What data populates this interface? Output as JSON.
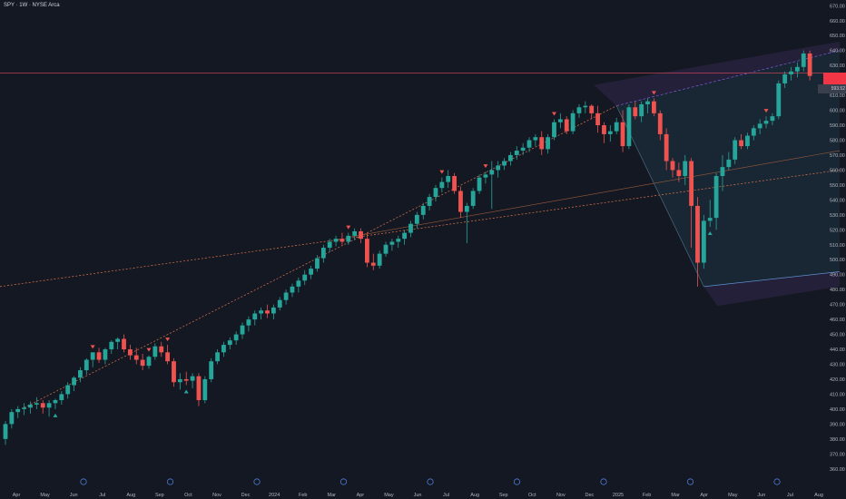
{
  "header": {
    "title": "SPY · 1W · NYSE Arca"
  },
  "price_label": "593.52",
  "colors": {
    "bg": "#141823",
    "up": "#26a69a",
    "down": "#ef5350",
    "axis_text": "#b2b5be",
    "trend": "#e0764a",
    "channel_fill": "#1e3a4a",
    "channel_top": "#7b5cd6",
    "hline": "#e04b5f"
  },
  "chart_data": {
    "type": "candlestick",
    "title": "SPY · 1W · NYSE Arca",
    "ylim": [
      355,
      672
    ],
    "y_ticks": [
      360,
      370,
      380,
      390,
      400,
      410,
      420,
      430,
      440,
      450,
      460,
      470,
      480,
      490,
      500,
      510,
      520,
      530,
      540,
      550,
      560,
      570,
      580,
      590,
      600,
      610,
      620,
      630,
      640,
      650,
      660,
      670
    ],
    "x_ticks": [
      "Apr",
      "May",
      "Jun",
      "Jul",
      "Aug",
      "Sep",
      "Oct",
      "Nov",
      "Dec",
      "2024",
      "Feb",
      "Mar",
      "Apr",
      "May",
      "Jun",
      "Jul",
      "Aug",
      "Sep",
      "Oct",
      "Nov",
      "Dec",
      "2025",
      "Feb",
      "Mar",
      "Apr",
      "May",
      "Jun",
      "Jul",
      "Aug"
    ],
    "grid": false,
    "candles": [
      {
        "o": 380,
        "h": 392,
        "l": 376,
        "c": 390
      },
      {
        "o": 390,
        "h": 400,
        "l": 387,
        "c": 398
      },
      {
        "o": 398,
        "h": 402,
        "l": 394,
        "c": 400
      },
      {
        "o": 400,
        "h": 404,
        "l": 396,
        "c": 401
      },
      {
        "o": 401,
        "h": 405,
        "l": 397,
        "c": 403
      },
      {
        "o": 403,
        "h": 408,
        "l": 400,
        "c": 404
      },
      {
        "o": 404,
        "h": 406,
        "l": 397,
        "c": 401
      },
      {
        "o": 401,
        "h": 406,
        "l": 395,
        "c": 404
      },
      {
        "o": 404,
        "h": 407,
        "l": 400,
        "c": 406
      },
      {
        "o": 406,
        "h": 412,
        "l": 403,
        "c": 410
      },
      {
        "o": 410,
        "h": 418,
        "l": 407,
        "c": 416
      },
      {
        "o": 416,
        "h": 422,
        "l": 412,
        "c": 421
      },
      {
        "o": 421,
        "h": 428,
        "l": 418,
        "c": 426
      },
      {
        "o": 426,
        "h": 434,
        "l": 423,
        "c": 433
      },
      {
        "o": 433,
        "h": 438,
        "l": 428,
        "c": 438
      },
      {
        "o": 438,
        "h": 441,
        "l": 431,
        "c": 433
      },
      {
        "o": 433,
        "h": 441,
        "l": 430,
        "c": 440
      },
      {
        "o": 440,
        "h": 446,
        "l": 437,
        "c": 445
      },
      {
        "o": 445,
        "h": 448,
        "l": 440,
        "c": 447
      },
      {
        "o": 447,
        "h": 450,
        "l": 438,
        "c": 440
      },
      {
        "o": 440,
        "h": 443,
        "l": 433,
        "c": 436
      },
      {
        "o": 436,
        "h": 441,
        "l": 430,
        "c": 433
      },
      {
        "o": 433,
        "h": 437,
        "l": 426,
        "c": 429
      },
      {
        "o": 429,
        "h": 436,
        "l": 427,
        "c": 435
      },
      {
        "o": 435,
        "h": 444,
        "l": 433,
        "c": 442
      },
      {
        "o": 442,
        "h": 445,
        "l": 435,
        "c": 438
      },
      {
        "o": 438,
        "h": 443,
        "l": 430,
        "c": 432
      },
      {
        "o": 432,
        "h": 434,
        "l": 415,
        "c": 418
      },
      {
        "o": 418,
        "h": 424,
        "l": 413,
        "c": 420
      },
      {
        "o": 420,
        "h": 425,
        "l": 416,
        "c": 419
      },
      {
        "o": 419,
        "h": 424,
        "l": 414,
        "c": 422
      },
      {
        "o": 422,
        "h": 424,
        "l": 402,
        "c": 406
      },
      {
        "o": 406,
        "h": 422,
        "l": 404,
        "c": 420
      },
      {
        "o": 420,
        "h": 434,
        "l": 418,
        "c": 432
      },
      {
        "o": 432,
        "h": 440,
        "l": 430,
        "c": 438
      },
      {
        "o": 438,
        "h": 445,
        "l": 435,
        "c": 443
      },
      {
        "o": 443,
        "h": 448,
        "l": 440,
        "c": 446
      },
      {
        "o": 446,
        "h": 452,
        "l": 443,
        "c": 450
      },
      {
        "o": 450,
        "h": 458,
        "l": 447,
        "c": 456
      },
      {
        "o": 456,
        "h": 462,
        "l": 452,
        "c": 460
      },
      {
        "o": 460,
        "h": 466,
        "l": 456,
        "c": 464
      },
      {
        "o": 464,
        "h": 468,
        "l": 460,
        "c": 466
      },
      {
        "o": 466,
        "h": 470,
        "l": 461,
        "c": 464
      },
      {
        "o": 464,
        "h": 470,
        "l": 460,
        "c": 468
      },
      {
        "o": 468,
        "h": 475,
        "l": 466,
        "c": 473
      },
      {
        "o": 473,
        "h": 480,
        "l": 470,
        "c": 478
      },
      {
        "o": 478,
        "h": 484,
        "l": 475,
        "c": 482
      },
      {
        "o": 482,
        "h": 488,
        "l": 478,
        "c": 486
      },
      {
        "o": 486,
        "h": 493,
        "l": 483,
        "c": 490
      },
      {
        "o": 490,
        "h": 496,
        "l": 487,
        "c": 494
      },
      {
        "o": 494,
        "h": 503,
        "l": 492,
        "c": 501
      },
      {
        "o": 501,
        "h": 510,
        "l": 498,
        "c": 508
      },
      {
        "o": 508,
        "h": 514,
        "l": 505,
        "c": 512
      },
      {
        "o": 512,
        "h": 516,
        "l": 509,
        "c": 514
      },
      {
        "o": 514,
        "h": 518,
        "l": 510,
        "c": 512
      },
      {
        "o": 512,
        "h": 518,
        "l": 510,
        "c": 516
      },
      {
        "o": 516,
        "h": 521,
        "l": 513,
        "c": 519
      },
      {
        "o": 519,
        "h": 521,
        "l": 511,
        "c": 514
      },
      {
        "o": 514,
        "h": 518,
        "l": 495,
        "c": 498
      },
      {
        "o": 498,
        "h": 504,
        "l": 493,
        "c": 496
      },
      {
        "o": 496,
        "h": 506,
        "l": 494,
        "c": 504
      },
      {
        "o": 504,
        "h": 512,
        "l": 502,
        "c": 510
      },
      {
        "o": 510,
        "h": 514,
        "l": 506,
        "c": 512
      },
      {
        "o": 512,
        "h": 516,
        "l": 508,
        "c": 514
      },
      {
        "o": 514,
        "h": 520,
        "l": 510,
        "c": 518
      },
      {
        "o": 518,
        "h": 526,
        "l": 515,
        "c": 524
      },
      {
        "o": 524,
        "h": 532,
        "l": 521,
        "c": 530
      },
      {
        "o": 530,
        "h": 538,
        "l": 527,
        "c": 536
      },
      {
        "o": 536,
        "h": 544,
        "l": 533,
        "c": 542
      },
      {
        "o": 542,
        "h": 550,
        "l": 539,
        "c": 548
      },
      {
        "o": 548,
        "h": 555,
        "l": 545,
        "c": 552
      },
      {
        "o": 552,
        "h": 560,
        "l": 548,
        "c": 556
      },
      {
        "o": 556,
        "h": 558,
        "l": 544,
        "c": 546
      },
      {
        "o": 546,
        "h": 549,
        "l": 528,
        "c": 532
      },
      {
        "o": 532,
        "h": 538,
        "l": 511,
        "c": 536
      },
      {
        "o": 536,
        "h": 548,
        "l": 534,
        "c": 546
      },
      {
        "o": 546,
        "h": 557,
        "l": 544,
        "c": 555
      },
      {
        "o": 555,
        "h": 559,
        "l": 551,
        "c": 557
      },
      {
        "o": 557,
        "h": 566,
        "l": 534,
        "c": 560
      },
      {
        "o": 560,
        "h": 566,
        "l": 555,
        "c": 563
      },
      {
        "o": 563,
        "h": 568,
        "l": 560,
        "c": 566
      },
      {
        "o": 566,
        "h": 572,
        "l": 563,
        "c": 570
      },
      {
        "o": 570,
        "h": 576,
        "l": 567,
        "c": 573
      },
      {
        "o": 573,
        "h": 578,
        "l": 570,
        "c": 575
      },
      {
        "o": 575,
        "h": 582,
        "l": 572,
        "c": 580
      },
      {
        "o": 580,
        "h": 584,
        "l": 576,
        "c": 582
      },
      {
        "o": 582,
        "h": 586,
        "l": 570,
        "c": 574
      },
      {
        "o": 574,
        "h": 584,
        "l": 571,
        "c": 582
      },
      {
        "o": 582,
        "h": 594,
        "l": 580,
        "c": 592
      },
      {
        "o": 592,
        "h": 598,
        "l": 588,
        "c": 594
      },
      {
        "o": 594,
        "h": 596,
        "l": 584,
        "c": 586
      },
      {
        "o": 586,
        "h": 600,
        "l": 584,
        "c": 598
      },
      {
        "o": 598,
        "h": 604,
        "l": 595,
        "c": 602
      },
      {
        "o": 602,
        "h": 606,
        "l": 598,
        "c": 603
      },
      {
        "o": 603,
        "h": 604,
        "l": 594,
        "c": 598
      },
      {
        "o": 598,
        "h": 603,
        "l": 585,
        "c": 590
      },
      {
        "o": 590,
        "h": 592,
        "l": 578,
        "c": 584
      },
      {
        "o": 584,
        "h": 590,
        "l": 579,
        "c": 586
      },
      {
        "o": 586,
        "h": 595,
        "l": 584,
        "c": 592
      },
      {
        "o": 592,
        "h": 600,
        "l": 572,
        "c": 576
      },
      {
        "o": 576,
        "h": 604,
        "l": 574,
        "c": 602
      },
      {
        "o": 602,
        "h": 606,
        "l": 594,
        "c": 596
      },
      {
        "o": 596,
        "h": 606,
        "l": 592,
        "c": 604
      },
      {
        "o": 604,
        "h": 608,
        "l": 598,
        "c": 606
      },
      {
        "o": 606,
        "h": 608,
        "l": 596,
        "c": 598
      },
      {
        "o": 598,
        "h": 600,
        "l": 580,
        "c": 584
      },
      {
        "o": 584,
        "h": 588,
        "l": 560,
        "c": 566
      },
      {
        "o": 566,
        "h": 568,
        "l": 555,
        "c": 560
      },
      {
        "o": 560,
        "h": 565,
        "l": 552,
        "c": 556
      },
      {
        "o": 556,
        "h": 570,
        "l": 550,
        "c": 566
      },
      {
        "o": 566,
        "h": 568,
        "l": 508,
        "c": 536
      },
      {
        "o": 536,
        "h": 542,
        "l": 482,
        "c": 498
      },
      {
        "o": 498,
        "h": 530,
        "l": 494,
        "c": 526
      },
      {
        "o": 526,
        "h": 540,
        "l": 522,
        "c": 528
      },
      {
        "o": 528,
        "h": 558,
        "l": 520,
        "c": 556
      },
      {
        "o": 556,
        "h": 570,
        "l": 546,
        "c": 562
      },
      {
        "o": 562,
        "h": 572,
        "l": 560,
        "c": 567
      },
      {
        "o": 567,
        "h": 582,
        "l": 564,
        "c": 580
      },
      {
        "o": 580,
        "h": 584,
        "l": 574,
        "c": 576
      },
      {
        "o": 576,
        "h": 585,
        "l": 574,
        "c": 583
      },
      {
        "o": 583,
        "h": 590,
        "l": 580,
        "c": 588
      },
      {
        "o": 588,
        "h": 594,
        "l": 584,
        "c": 591
      },
      {
        "o": 591,
        "h": 596,
        "l": 588,
        "c": 593
      },
      {
        "o": 593,
        "h": 598,
        "l": 590,
        "c": 596
      },
      {
        "o": 596,
        "h": 620,
        "l": 594,
        "c": 618
      },
      {
        "o": 618,
        "h": 626,
        "l": 615,
        "c": 624
      },
      {
        "o": 624,
        "h": 629,
        "l": 620,
        "c": 626
      },
      {
        "o": 626,
        "h": 632,
        "l": 622,
        "c": 629
      },
      {
        "o": 629,
        "h": 640,
        "l": 626,
        "c": 638
      },
      {
        "o": 638,
        "h": 640,
        "l": 620,
        "c": 623
      }
    ]
  }
}
